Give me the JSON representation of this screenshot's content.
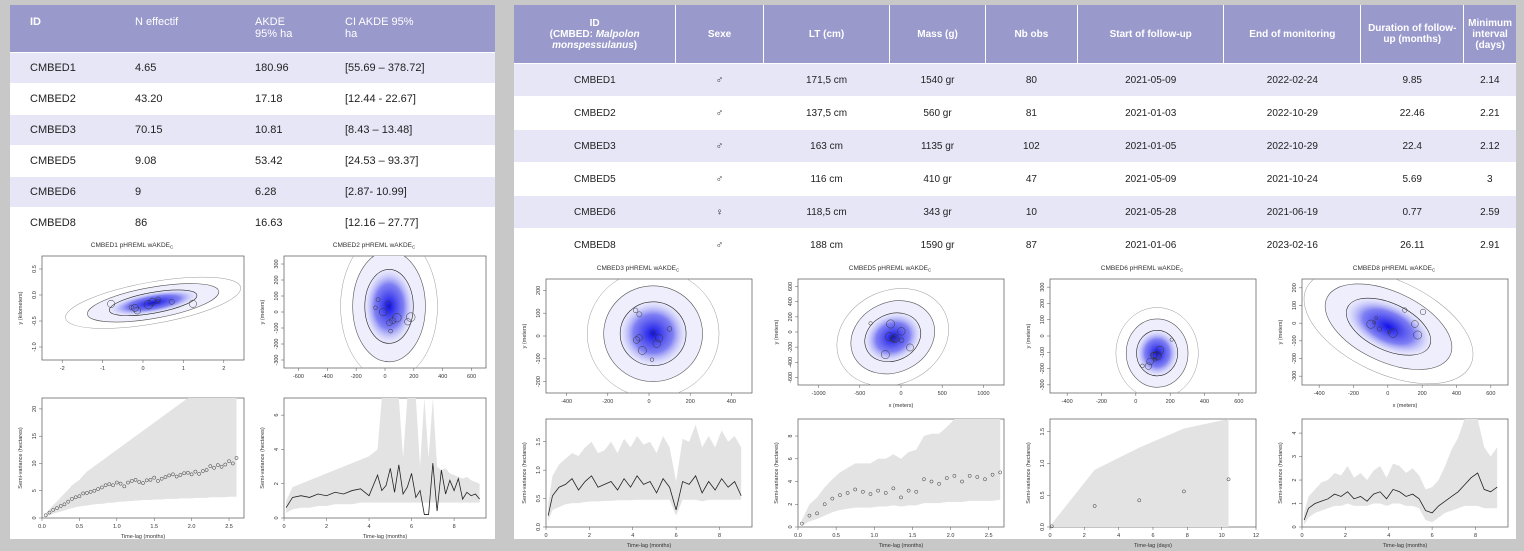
{
  "table_left": {
    "headers": [
      "ID",
      "N effectif",
      "AKDE\n95% ha",
      "CI AKDE 95%\nha"
    ],
    "rows": [
      [
        "CMBED1",
        "4.65",
        "180.96",
        "[55.69 – 378.72]"
      ],
      [
        "CMBED2",
        "43.20",
        "17.18",
        "[12.44 - 22.67]"
      ],
      [
        "CMBED3",
        "70.15",
        "10.81",
        "[8.43 – 13.48]"
      ],
      [
        "CMBED5",
        "9.08",
        "53.42",
        "[24.53 – 93.37]"
      ],
      [
        "CMBED6",
        "9",
        "6.28",
        "[2.87- 10.99]"
      ],
      [
        "CMBED8",
        "86",
        "16.63",
        "[12.16 – 27.77]"
      ]
    ]
  },
  "table_right": {
    "headers": {
      "id_line1": "ID",
      "id_line2": "(CMBED: ",
      "id_species": "Malpolon monspessulanus",
      "id_end": ")",
      "sexe": "Sexe",
      "lt": "LT (cm)",
      "mass": "Mass (g)",
      "nbobs": "Nb obs",
      "start": "Start of follow-up",
      "end": "End of monitoring",
      "duration": "Duration of follow-up (months)",
      "interval": "Minimum interval (days)"
    },
    "rows": [
      [
        "CMBED1",
        "♂",
        "171,5 cm",
        "1540 gr",
        "80",
        "2021-05-09",
        "2022-02-24",
        "9.85",
        "2.14"
      ],
      [
        "CMBED2",
        "♂",
        "137,5 cm",
        "560 gr",
        "81",
        "2021-01-03",
        "2022-10-29",
        "22.46",
        "2.21"
      ],
      [
        "CMBED3",
        "♂",
        "163 cm",
        "1135 gr",
        "102",
        "2021-01-05",
        "2022-10-29",
        "22.4",
        "2.12"
      ],
      [
        "CMBED5",
        "♂",
        "116 cm",
        "410 gr",
        "47",
        "2021-05-09",
        "2021-10-24",
        "5.69",
        "3"
      ],
      [
        "CMBED6",
        "♀",
        "118,5 cm",
        "343 gr",
        "10",
        "2021-05-28",
        "2021-06-19",
        "0.77",
        "2.59"
      ],
      [
        "CMBED8",
        "♂",
        "188 cm",
        "1590 gr",
        "87",
        "2021-01-06",
        "2023-02-16",
        "26.11",
        "2.91"
      ]
    ]
  },
  "colors": {
    "header": "#9999cc",
    "band": "#e6e6f7",
    "kde": "#1a1aee",
    "envelope": "#e3e3e3"
  },
  "chart_data": [
    {
      "id": "map1",
      "type": "heatmap",
      "title": "CMBED1 pHREML wAKDE",
      "title_sub": "C",
      "xlabel": "",
      "ylabel": "y (kilometers)",
      "xticks": [
        "-2",
        "-1",
        "0",
        "1",
        "2"
      ],
      "yticks": [
        "-1.0",
        "-0.5",
        "0.0",
        "0.5"
      ]
    },
    {
      "id": "map2",
      "type": "heatmap",
      "title": "CMBED2 pHREML wAKDE",
      "title_sub": "C",
      "xlabel": "",
      "ylabel": "y (meters)",
      "xticks": [
        "-600",
        "-400",
        "-200",
        "0",
        "200",
        "400",
        "600"
      ],
      "yticks": [
        "-300",
        "-200",
        "-100",
        "0",
        "100",
        "200",
        "300"
      ]
    },
    {
      "id": "map3",
      "type": "heatmap",
      "title": "CMBED3 pHREML wAKDE",
      "title_sub": "C",
      "xlabel": "",
      "ylabel": "y (meters)",
      "xticks": [
        "-400",
        "-200",
        "0",
        "200",
        "400"
      ],
      "yticks": [
        "-200",
        "-100",
        "0",
        "100",
        "200"
      ]
    },
    {
      "id": "map5",
      "type": "heatmap",
      "title": "CMBED5 pHREML wAKDE",
      "title_sub": "C",
      "xlabel": "x (meters)",
      "ylabel": "y (meters)",
      "xticks": [
        "-1000",
        "-500",
        "0",
        "500",
        "1000"
      ],
      "yticks": [
        "-600",
        "-400",
        "-200",
        "0",
        "200",
        "400",
        "600"
      ]
    },
    {
      "id": "map6",
      "type": "heatmap",
      "title": "CMBED6 pHREML wAKDE",
      "title_sub": "C",
      "xlabel": "",
      "ylabel": "y (meters)",
      "xticks": [
        "-400",
        "-200",
        "0",
        "200",
        "400",
        "600"
      ],
      "yticks": [
        "-300",
        "-200",
        "-100",
        "0",
        "100",
        "200",
        "300"
      ]
    },
    {
      "id": "map8",
      "type": "heatmap",
      "title": "CMBED8 pHREML wAKDE",
      "title_sub": "C",
      "xlabel": "x (meters)",
      "ylabel": "y (meters)",
      "xticks": [
        "-400",
        "-200",
        "0",
        "200",
        "400",
        "600"
      ],
      "yticks": [
        "-300",
        "-200",
        "-100",
        "0",
        "100",
        "200"
      ]
    },
    {
      "id": "vg1",
      "type": "scatter",
      "xlabel": "Time-lag (months)",
      "ylabel": "Semi-variance (hectares)",
      "xlim": [
        0,
        2.7
      ],
      "ylim": [
        0,
        22
      ],
      "xticks": [
        "0.0",
        "0.5",
        "1.0",
        "1.5",
        "2.0",
        "2.5"
      ],
      "yticks": [
        "0",
        "5",
        "10",
        "15",
        "20"
      ],
      "x": [
        0.05,
        0.1,
        0.15,
        0.2,
        0.25,
        0.3,
        0.35,
        0.4,
        0.45,
        0.5,
        0.55,
        0.6,
        0.65,
        0.7,
        0.75,
        0.8,
        0.85,
        0.9,
        0.95,
        1.0,
        1.05,
        1.1,
        1.15,
        1.2,
        1.25,
        1.3,
        1.35,
        1.4,
        1.45,
        1.5,
        1.55,
        1.6,
        1.65,
        1.7,
        1.75,
        1.8,
        1.85,
        1.9,
        1.95,
        2.0,
        2.05,
        2.1,
        2.15,
        2.2,
        2.25,
        2.3,
        2.35,
        2.4,
        2.45,
        2.5,
        2.55,
        2.6
      ],
      "y": [
        0.5,
        1.0,
        1.5,
        1.8,
        2.2,
        2.5,
        3.0,
        3.5,
        3.8,
        4.0,
        4.5,
        4.6,
        4.8,
        5.0,
        5.3,
        5.6,
        6.0,
        6.2,
        6.0,
        6.5,
        6.3,
        5.8,
        6.5,
        6.8,
        7.0,
        6.6,
        6.4,
        6.9,
        7.0,
        7.4,
        6.8,
        7.2,
        7.5,
        7.8,
        8.0,
        7.6,
        7.9,
        8.2,
        8.3,
        8.0,
        8.5,
        8.1,
        8.6,
        8.8,
        9.5,
        9.2,
        9.7,
        9.4,
        9.8,
        10.4,
        10.0,
        11.0
      ],
      "lower": [
        0.3,
        0.5,
        0.8,
        1.0,
        1.2,
        1.4,
        1.6,
        1.8,
        2.0,
        2.1,
        2.2,
        2.3,
        2.4,
        2.5,
        2.6,
        2.6,
        2.7,
        2.8,
        2.8,
        2.9,
        3.0,
        3.0,
        3.1,
        3.1,
        3.2,
        3.2,
        3.3,
        3.3,
        3.3,
        3.4,
        3.4,
        3.4,
        3.5,
        3.5,
        3.5,
        3.5,
        3.6,
        3.6,
        3.6,
        3.6,
        3.7,
        3.7,
        3.7,
        3.7,
        3.8,
        3.8,
        3.8,
        3.8,
        3.8,
        3.9,
        3.9,
        3.9
      ],
      "upper": [
        0.8,
        1.6,
        2.4,
        3.0,
        3.8,
        4.5,
        5.2,
        6.0,
        6.5,
        7.0,
        7.8,
        8.5,
        9.0,
        9.5,
        10,
        10.5,
        11,
        11.5,
        12,
        12.5,
        13,
        13.5,
        14,
        14.5,
        15,
        15.5,
        16,
        16.5,
        17,
        17.5,
        18,
        18.5,
        19,
        19.5,
        20,
        20.5,
        21,
        21.5,
        22,
        22,
        22,
        22,
        22,
        22,
        22,
        22,
        22,
        22,
        22,
        22,
        22,
        22
      ]
    },
    {
      "id": "vg2",
      "type": "line",
      "xlabel": "Time-lag (months)",
      "ylabel": "Semi-variance (hectares)",
      "xlim": [
        0,
        9.5
      ],
      "ylim": [
        0,
        7
      ],
      "xticks": [
        "0",
        "2",
        "4",
        "6",
        "8"
      ],
      "yticks": [
        "0",
        "2",
        "4",
        "6"
      ],
      "x": [
        0.1,
        0.4,
        0.8,
        1.2,
        1.6,
        2.0,
        2.4,
        2.8,
        3.2,
        3.6,
        4.0,
        4.4,
        4.6,
        4.8,
        5.0,
        5.2,
        5.4,
        5.6,
        5.8,
        6.0,
        6.2,
        6.4,
        6.6,
        6.8,
        7.0,
        7.2,
        7.4,
        7.6,
        7.8,
        8.0,
        8.2,
        8.4,
        8.6,
        8.8,
        9.0,
        9.2
      ],
      "y": [
        0.6,
        1.2,
        1.3,
        1.2,
        1.4,
        1.3,
        1.5,
        1.4,
        1.6,
        1.7,
        1.3,
        2.5,
        1.6,
        1.9,
        2.9,
        1.5,
        3.1,
        1.4,
        1.8,
        2.6,
        1.2,
        1.6,
        0.2,
        0.2,
        3.2,
        0.4,
        2.8,
        1.4,
        2.2,
        1.6,
        2.3,
        1.1,
        1.5,
        1.3,
        1.4,
        1.1
      ],
      "lower": [
        0.3,
        0.5,
        0.6,
        0.6,
        0.7,
        0.7,
        0.8,
        0.8,
        0.8,
        0.9,
        0.9,
        0.9,
        0.9,
        0.9,
        0.9,
        0.9,
        0.9,
        0.9,
        0.9,
        0.9,
        0.9,
        0.9,
        0.9,
        0.9,
        0.9,
        0.9,
        0.9,
        0.9,
        0.9,
        0.9,
        0.9,
        0.9,
        0.9,
        0.9,
        0.9,
        0.9
      ],
      "upper": [
        1.0,
        1.8,
        2.0,
        2.2,
        2.4,
        2.6,
        2.8,
        3.0,
        3.2,
        3.4,
        3.6,
        4.0,
        7,
        7,
        7,
        7,
        7,
        3.5,
        7,
        7,
        7,
        3.0,
        7,
        3.5,
        7,
        3.0,
        2.8,
        2.9,
        2.6,
        2.5,
        2.4,
        2.3,
        2.4,
        2.2,
        2.1,
        2.0
      ]
    },
    {
      "id": "vg3",
      "type": "line",
      "xlabel": "Time-lag (months)",
      "ylabel": "Semi-variance (hectares)",
      "xlim": [
        0,
        9.5
      ],
      "ylim": [
        0,
        1.9
      ],
      "xticks": [
        "0",
        "2",
        "4",
        "6",
        "8"
      ],
      "yticks": [
        "0.0",
        "0.5",
        "1.0",
        "1.5"
      ],
      "x": [
        0.1,
        0.3,
        0.6,
        0.9,
        1.2,
        1.5,
        1.8,
        2.1,
        2.4,
        2.7,
        3.0,
        3.3,
        3.6,
        3.9,
        4.2,
        4.5,
        4.8,
        5.1,
        5.4,
        5.7,
        6.0,
        6.3,
        6.6,
        6.9,
        7.2,
        7.5,
        7.8,
        8.1,
        8.4,
        8.7,
        9.0
      ],
      "y": [
        0.2,
        0.55,
        0.7,
        0.75,
        0.85,
        0.65,
        0.8,
        0.9,
        0.7,
        0.75,
        0.8,
        0.65,
        0.85,
        0.7,
        0.9,
        0.75,
        0.8,
        0.6,
        0.85,
        0.7,
        0.3,
        0.8,
        0.75,
        0.9,
        0.6,
        0.8,
        0.65,
        0.85,
        0.7,
        0.8,
        0.55
      ],
      "lower": [
        0.1,
        0.3,
        0.35,
        0.4,
        0.42,
        0.42,
        0.44,
        0.45,
        0.45,
        0.46,
        0.46,
        0.47,
        0.47,
        0.47,
        0.48,
        0.48,
        0.48,
        0.48,
        0.48,
        0.48,
        0.2,
        0.48,
        0.48,
        0.48,
        0.45,
        0.48,
        0.48,
        0.48,
        0.48,
        0.48,
        0.48
      ],
      "upper": [
        0.4,
        0.9,
        1.1,
        1.2,
        1.3,
        1.25,
        1.4,
        1.5,
        1.3,
        1.35,
        1.5,
        1.3,
        1.55,
        1.4,
        1.6,
        1.45,
        1.5,
        1.3,
        1.6,
        1.4,
        0.8,
        1.55,
        1.5,
        1.8,
        1.4,
        1.6,
        1.4,
        1.7,
        1.5,
        1.6,
        1.4
      ]
    },
    {
      "id": "vg5",
      "type": "scatter",
      "xlabel": "Time-lag (months)",
      "ylabel": "Semi-variance (hectares)",
      "xlim": [
        0,
        2.7
      ],
      "ylim": [
        0,
        9.5
      ],
      "xticks": [
        "0.0",
        "0.5",
        "1.0",
        "1.5",
        "2.0",
        "2.5"
      ],
      "yticks": [
        "0",
        "2",
        "4",
        "6",
        "8"
      ],
      "x": [
        0.05,
        0.15,
        0.25,
        0.35,
        0.45,
        0.55,
        0.65,
        0.75,
        0.85,
        0.95,
        1.05,
        1.15,
        1.25,
        1.35,
        1.45,
        1.55,
        1.65,
        1.75,
        1.85,
        1.95,
        2.05,
        2.15,
        2.25,
        2.35,
        2.45,
        2.55,
        2.65
      ],
      "y": [
        0.3,
        1.0,
        1.2,
        2.0,
        2.5,
        2.8,
        3.0,
        3.3,
        3.1,
        2.9,
        3.2,
        3.0,
        3.4,
        2.6,
        3.2,
        3.1,
        4.2,
        4.0,
        3.8,
        4.3,
        4.5,
        4.0,
        4.5,
        4.4,
        4.2,
        4.6,
        4.8
      ],
      "lower": [
        0.1,
        0.5,
        0.7,
        1.0,
        1.3,
        1.5,
        1.6,
        1.7,
        1.7,
        1.7,
        1.8,
        1.8,
        1.9,
        1.8,
        1.9,
        1.9,
        2.1,
        2.1,
        2.1,
        2.2,
        2.2,
        2.2,
        2.3,
        2.3,
        2.3,
        2.3,
        2.4
      ],
      "upper": [
        0.6,
        2.0,
        2.6,
        3.5,
        4.2,
        4.8,
        5.2,
        5.6,
        5.6,
        5.6,
        6.0,
        6.0,
        6.4,
        6.0,
        6.6,
        6.8,
        8.0,
        8.2,
        8.2,
        8.8,
        9.5,
        9.5,
        9.5,
        9.5,
        9.5,
        9.5,
        9.5
      ]
    },
    {
      "id": "vg6",
      "type": "scatter",
      "xlabel": "Time-lag (days)",
      "ylabel": "Semi-variance (hectares)",
      "xlim": [
        0,
        12
      ],
      "ylim": [
        0,
        1.7
      ],
      "xticks": [
        "0",
        "2",
        "4",
        "6",
        "8",
        "10",
        "12"
      ],
      "yticks": [
        "0.0",
        "0.5",
        "1.0",
        "1.5"
      ],
      "x": [
        0.1,
        2.6,
        5.2,
        7.8,
        10.4
      ],
      "y": [
        0.01,
        0.33,
        0.42,
        0.56,
        0.75
      ],
      "lower": [
        0.0,
        0.0,
        0.0,
        0.0,
        0.0
      ],
      "upper": [
        0.05,
        0.9,
        1.25,
        1.55,
        1.7
      ]
    },
    {
      "id": "vg8",
      "type": "line",
      "xlabel": "Time-lag (months)",
      "ylabel": "Semi-variance (hectares)",
      "xlim": [
        0,
        9.5
      ],
      "ylim": [
        0,
        4.6
      ],
      "xticks": [
        "0",
        "2",
        "4",
        "6",
        "8"
      ],
      "yticks": [
        "0",
        "1",
        "2",
        "3",
        "4"
      ],
      "x": [
        0.1,
        0.3,
        0.6,
        0.9,
        1.2,
        1.5,
        1.8,
        2.1,
        2.4,
        2.7,
        3.0,
        3.3,
        3.6,
        3.9,
        4.2,
        4.5,
        4.8,
        5.1,
        5.4,
        5.7,
        6.0,
        6.3,
        6.6,
        6.9,
        7.2,
        7.5,
        7.8,
        8.1,
        8.4,
        8.7,
        9.0
      ],
      "y": [
        0.3,
        0.8,
        1.0,
        1.1,
        1.2,
        1.4,
        1.3,
        1.5,
        1.2,
        1.3,
        1.1,
        1.4,
        1.5,
        1.2,
        1.6,
        1.5,
        1.3,
        1.4,
        1.2,
        0.7,
        0.6,
        0.9,
        1.1,
        1.3,
        1.5,
        1.8,
        2.1,
        2.3,
        1.6,
        1.5,
        1.7
      ],
      "lower": [
        0.1,
        0.4,
        0.6,
        0.7,
        0.8,
        0.9,
        0.9,
        1.0,
        0.9,
        0.9,
        0.9,
        1.0,
        1.0,
        0.9,
        1.0,
        1.0,
        0.9,
        0.9,
        0.8,
        0.3,
        0.2,
        0.4,
        0.6,
        0.7,
        0.8,
        0.9,
        0.9,
        0.9,
        0.8,
        0.8,
        0.8
      ],
      "upper": [
        0.6,
        1.3,
        1.6,
        1.9,
        2.0,
        2.3,
        2.2,
        2.6,
        2.1,
        2.3,
        2.0,
        2.4,
        2.6,
        2.1,
        2.7,
        2.6,
        2.3,
        2.5,
        2.2,
        1.6,
        1.7,
        2.0,
        2.6,
        3.3,
        3.8,
        4.6,
        4.6,
        4.6,
        3.4,
        3.0,
        3.4
      ]
    }
  ]
}
